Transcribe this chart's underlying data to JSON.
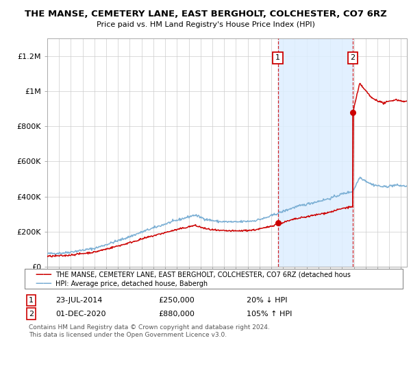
{
  "title": "THE MANSE, CEMETERY LANE, EAST BERGHOLT, COLCHESTER, CO7 6RZ",
  "subtitle": "Price paid vs. HM Land Registry's House Price Index (HPI)",
  "background_color": "#ffffff",
  "plot_bg_color": "#ffffff",
  "grid_color": "#cccccc",
  "hpi_color": "#7bafd4",
  "price_color": "#cc0000",
  "shade_color": "#ddeeff",
  "sale1_date": 2014.55,
  "sale1_price": 250000,
  "sale1_label": "23-JUL-2014",
  "sale1_price_str": "£250,000",
  "sale1_pct": "20% ↓ HPI",
  "sale2_date": 2020.92,
  "sale2_price": 880000,
  "sale2_label": "01-DEC-2020",
  "sale2_price_str": "£880,000",
  "sale2_pct": "105% ↑ HPI",
  "ylim": [
    0,
    1300000
  ],
  "xlim_left": 1995.0,
  "xlim_right": 2025.5,
  "ylabel_ticks": [
    0,
    200000,
    400000,
    600000,
    800000,
    1000000,
    1200000
  ],
  "ylabel_labels": [
    "£0",
    "£200K",
    "£400K",
    "£600K",
    "£800K",
    "£1M",
    "£1.2M"
  ],
  "legend_property_label": "THE MANSE, CEMETERY LANE, EAST BERGHOLT, COLCHESTER, CO7 6RZ (detached hous",
  "legend_hpi_label": "HPI: Average price, detached house, Babergh",
  "footer1": "Contains HM Land Registry data © Crown copyright and database right 2024.",
  "footer2": "This data is licensed under the Open Government Licence v3.0."
}
